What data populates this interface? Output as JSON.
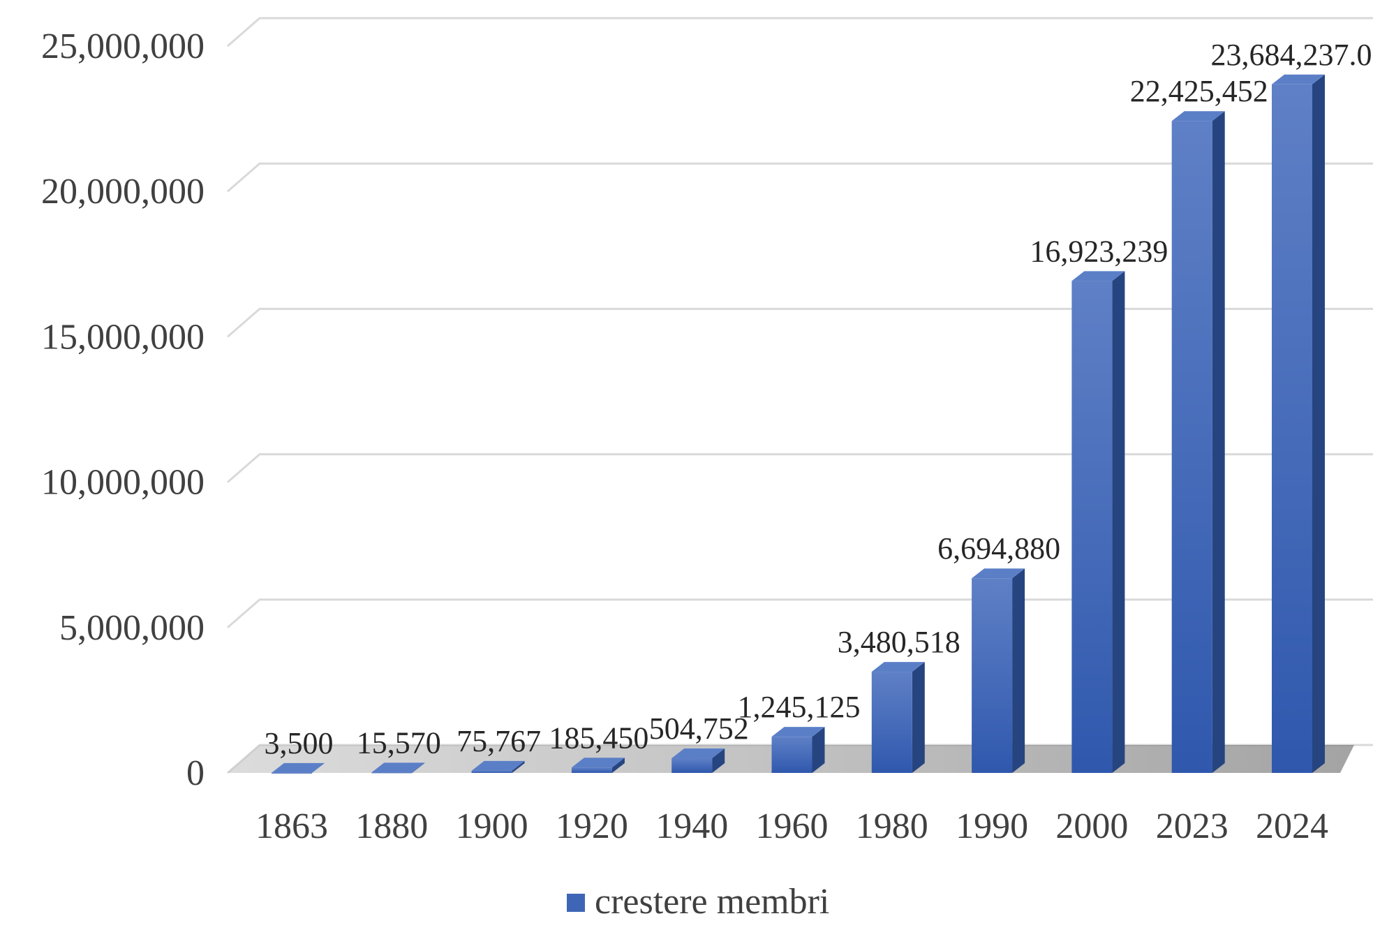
{
  "chart_data": {
    "type": "bar",
    "style": "3d-column",
    "categories": [
      "1863",
      "1880",
      "1900",
      "1920",
      "1940",
      "1960",
      "1980",
      "1990",
      "2000",
      "2023",
      "2024"
    ],
    "series": [
      {
        "name": "crestere membri",
        "values": [
          3500,
          15570,
          75767,
          185450,
          504752,
          1245125,
          3480518,
          6694880,
          16923239,
          22425452,
          23684237
        ],
        "data_labels": [
          "3,500",
          "15,570",
          "75,767",
          "185,450",
          "504,752",
          "1,245,125",
          "3,480,518",
          "6,694,880",
          "16,923,239",
          "22,425,452",
          "23,684,237.00"
        ]
      }
    ],
    "ylim": [
      0,
      25000000
    ],
    "yticks": [
      0,
      5000000,
      10000000,
      15000000,
      20000000,
      25000000
    ],
    "ytick_labels": [
      "0",
      "5,000,000",
      "10,000,000",
      "15,000,000",
      "20,000,000",
      "25,000,000"
    ],
    "grid": true,
    "legend": "bottom",
    "title": "",
    "xlabel": "",
    "ylabel": ""
  },
  "colors": {
    "bar_front": "#3f66b6",
    "bar_side": "#26447f",
    "bar_top": "#5b7fc7",
    "grid": "#d9d9d9",
    "floor_shadow": "#8c8c8c"
  }
}
